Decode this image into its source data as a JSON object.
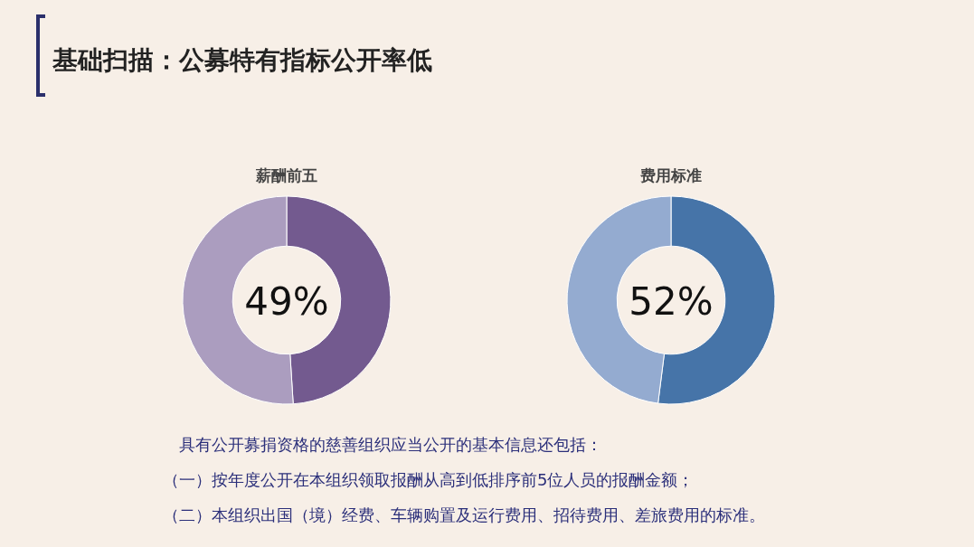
{
  "chart_data": [
    {
      "type": "other",
      "title": "基础扫描：公募特有指标公开率低",
      "annotations": [
        "具有公开募捐资格的慈善组织应当公开的基本信息还包括：",
        "（一）按年度公开在本组织领取报酬从高到低排序前5位人员的报酬金额；",
        "（二）本组织出国（境）经费、车辆购置及运行费用、招待费用、差旅费用的标准。"
      ]
    },
    {
      "type": "donut",
      "title": "薪酬前五",
      "categories": [
        null,
        null
      ],
      "values": [
        49,
        51
      ],
      "colors": [
        "#735a8f",
        "#ab9dbf"
      ],
      "annotations": [
        "49%"
      ]
    },
    {
      "type": "donut",
      "title": "费用标准",
      "categories": [
        null,
        null
      ],
      "values": [
        52,
        48
      ],
      "colors": [
        "#4674a8",
        "#94abd0"
      ],
      "annotations": [
        "52%"
      ]
    }
  ]
}
